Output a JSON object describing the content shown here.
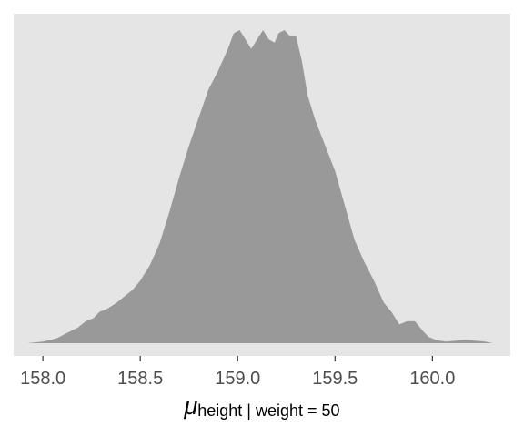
{
  "chart_data": {
    "type": "area",
    "title": "",
    "xlabel_symbol": "μ",
    "xlabel_subscript": "height | weight = 50",
    "ylabel": "",
    "xlim": [
      157.85,
      160.4
    ],
    "ylim": [
      0,
      1.05
    ],
    "x_ticks": [
      158.0,
      158.5,
      159.0,
      159.5,
      160.0
    ],
    "x_tick_labels": [
      "158.0",
      "158.5",
      "159.0",
      "159.5",
      "160.0"
    ],
    "y_ticks_shown": false,
    "grid": false,
    "fill_color": "#999999",
    "panel_color": "#e5e5e5",
    "series": [
      {
        "x": [
          157.92,
          158.0,
          158.07,
          158.13,
          158.18,
          158.22,
          158.26,
          158.29,
          158.33,
          158.38,
          158.42,
          158.46,
          158.5,
          158.55,
          158.6,
          158.65,
          158.7,
          158.75,
          158.8,
          158.85,
          158.9,
          158.95,
          158.98,
          159.01,
          159.04,
          159.07,
          159.1,
          159.13,
          159.16,
          159.19,
          159.21,
          159.24,
          159.27,
          159.3,
          159.33,
          159.36,
          159.4,
          159.45,
          159.5,
          159.55,
          159.6,
          159.65,
          159.7,
          159.75,
          159.79,
          159.83,
          159.87,
          159.91,
          159.95,
          159.98,
          160.02,
          160.07,
          160.12,
          160.17,
          160.22,
          160.27,
          160.31
        ],
        "y": [
          0.0,
          0.005,
          0.015,
          0.035,
          0.05,
          0.07,
          0.08,
          0.1,
          0.11,
          0.13,
          0.15,
          0.17,
          0.2,
          0.25,
          0.32,
          0.42,
          0.53,
          0.63,
          0.72,
          0.81,
          0.87,
          0.94,
          0.99,
          1.0,
          0.97,
          0.94,
          0.97,
          1.0,
          0.97,
          0.96,
          0.99,
          1.0,
          0.98,
          0.98,
          0.9,
          0.79,
          0.71,
          0.63,
          0.55,
          0.44,
          0.33,
          0.26,
          0.2,
          0.13,
          0.1,
          0.06,
          0.07,
          0.07,
          0.04,
          0.02,
          0.01,
          0.005,
          0.008,
          0.01,
          0.008,
          0.005,
          0.0
        ]
      }
    ]
  }
}
